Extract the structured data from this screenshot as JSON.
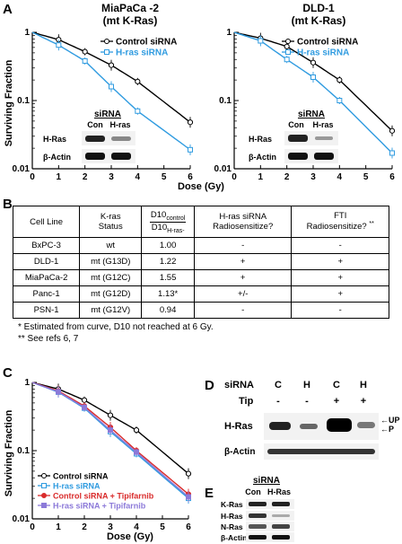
{
  "panel_labels": {
    "a": "A",
    "b": "B",
    "c": "C",
    "d": "D",
    "e": "E"
  },
  "colors": {
    "control": "#000000",
    "hras": "#2f9be0",
    "control_tipi": "#d92b2b",
    "hras_tipi": "#8c7ad9"
  },
  "panel_a_left": {
    "title_line1": "MiaPaCa -2",
    "title_line2": "(mt K-Ras)",
    "ylabel": "Surviving Fraction",
    "legend": [
      "Control siRNA",
      "H-ras siRNA"
    ],
    "inset": {
      "title": "siRNA",
      "lanes": [
        "Con",
        "H-ras"
      ],
      "rows": [
        "H-Ras",
        "β-Actin"
      ]
    }
  },
  "panel_a_right": {
    "title_line1": "DLD-1",
    "title_line2": "(mt K-Ras)",
    "legend": [
      "Control siRNA",
      "H-ras siRNA"
    ],
    "inset": {
      "title": "siRNA",
      "lanes": [
        "Con",
        "H-ras"
      ],
      "rows": [
        "H-Ras",
        "β-Actin"
      ]
    }
  },
  "panel_a_xlabel": "Dose (Gy)",
  "panel_b": {
    "headers": {
      "cell_line": "Cell Line",
      "kras_line1": "K-ras",
      "kras_line2": "Status",
      "d10_num": "D10",
      "d10_num_sub": "control",
      "d10_den": "D10",
      "d10_den_sub": "H-ras-",
      "hras_line1": "H-ras siRNA",
      "hras_line2": "Radiosensitize?",
      "fti_line1": "FTI",
      "fti_line2": "Radiosensitize?",
      "fti_mark": "**"
    },
    "rows": [
      {
        "cell": "BxPC-3",
        "status": "wt",
        "d10": "1.00",
        "hras": "-",
        "fti": "-"
      },
      {
        "cell": "DLD-1",
        "status": "mt (G13D)",
        "d10": "1.22",
        "hras": "+",
        "fti": "+"
      },
      {
        "cell": "MiaPaCa-2",
        "status": "mt (G12C)",
        "d10": "1.55",
        "hras": "+",
        "fti": "+"
      },
      {
        "cell": "Panc-1",
        "status": "mt (G12D)",
        "d10": "1.13*",
        "hras": "+/-",
        "fti": "+"
      },
      {
        "cell": "PSN-1",
        "status": "mt (G12V)",
        "d10": "0.94",
        "hras": "-",
        "fti": "-"
      }
    ],
    "footnote1": "* Estimated from curve, D10 not reached at 6 Gy.",
    "footnote2": "** See refs 6, 7"
  },
  "panel_c": {
    "ylabel": "Surviving Fraction",
    "xlabel": "Dose (Gy)",
    "legend": [
      "Control siRNA",
      "H-ras siRNA",
      "Control siRNA + Tipifarnib",
      "H-ras siRNA + Tipifarnib"
    ]
  },
  "panel_d": {
    "sirna_label": "siRNA",
    "tip_label": "Tip",
    "lanes": [
      "C",
      "H",
      "C",
      "H"
    ],
    "tip": [
      "-",
      "-",
      "+",
      "+"
    ],
    "rows": [
      "H-Ras",
      "β-Actin"
    ],
    "arrows": [
      "UP",
      "P"
    ]
  },
  "panel_e": {
    "sirna_label": "siRNA",
    "lanes": [
      "Con",
      "H-Ras"
    ],
    "rows": [
      "K-Ras",
      "H-Ras",
      "N-Ras",
      "β-Actin"
    ]
  },
  "chart_data": [
    {
      "type": "line",
      "title": "MiaPaCa -2 (mt K-Ras)",
      "xlabel": "Dose (Gy)",
      "ylabel": "Surviving Fraction",
      "xlim": [
        0,
        6
      ],
      "ylim": [
        0.01,
        1
      ],
      "yscale": "log",
      "x": [
        0,
        1,
        2,
        3,
        4,
        6
      ],
      "series": [
        {
          "name": "Control siRNA",
          "values": [
            1,
            0.78,
            0.52,
            0.33,
            0.19,
            0.048
          ]
        },
        {
          "name": "H-ras siRNA",
          "values": [
            1,
            0.65,
            0.38,
            0.16,
            0.07,
            0.019
          ]
        }
      ]
    },
    {
      "type": "line",
      "title": "DLD-1 (mt K-Ras)",
      "xlabel": "Dose (Gy)",
      "ylabel": "Surviving Fraction",
      "xlim": [
        0,
        6
      ],
      "ylim": [
        0.01,
        1
      ],
      "yscale": "log",
      "x": [
        0,
        1,
        2,
        3,
        4,
        6
      ],
      "series": [
        {
          "name": "Control siRNA",
          "values": [
            1,
            0.82,
            0.62,
            0.36,
            0.2,
            0.036
          ]
        },
        {
          "name": "H-ras siRNA",
          "values": [
            1,
            0.75,
            0.4,
            0.22,
            0.1,
            0.017
          ]
        }
      ]
    },
    {
      "type": "line",
      "xlabel": "Dose (Gy)",
      "ylabel": "Surviving Fraction",
      "xlim": [
        0,
        6
      ],
      "ylim": [
        0.01,
        1
      ],
      "yscale": "log",
      "x": [
        0,
        1,
        2,
        3,
        4,
        6
      ],
      "series": [
        {
          "name": "Control siRNA",
          "values": [
            1,
            0.8,
            0.55,
            0.33,
            0.2,
            0.046
          ]
        },
        {
          "name": "H-ras siRNA",
          "values": [
            1,
            0.72,
            0.42,
            0.19,
            0.09,
            0.02
          ]
        },
        {
          "name": "Control siRNA + Tipifarnib",
          "values": [
            1,
            0.75,
            0.45,
            0.22,
            0.1,
            0.023
          ]
        },
        {
          "name": "H-ras siRNA + Tipifarnib",
          "values": [
            1,
            0.73,
            0.43,
            0.2,
            0.095,
            0.021
          ]
        }
      ]
    }
  ]
}
